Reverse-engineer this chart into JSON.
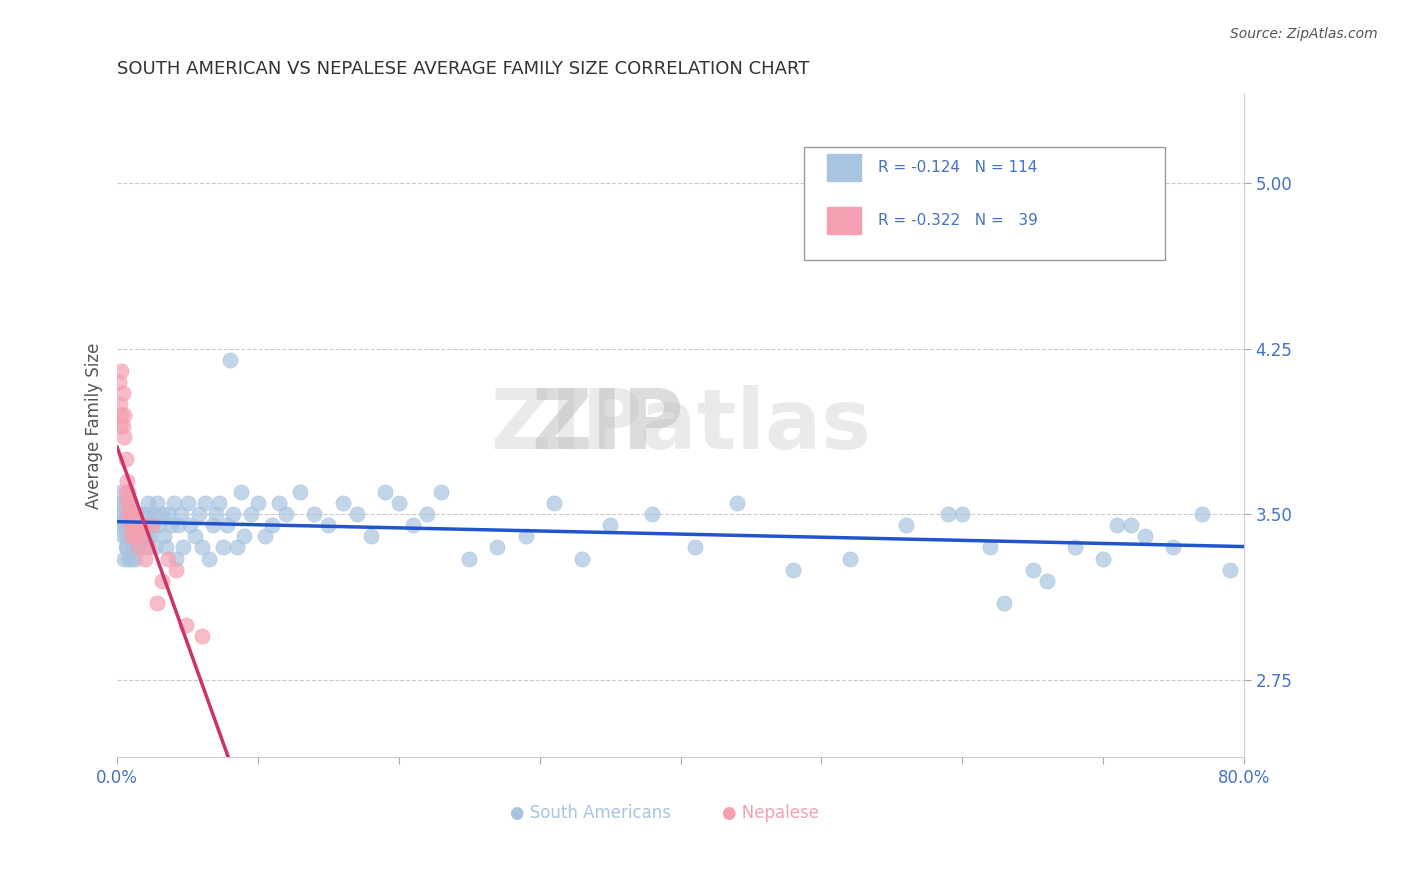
{
  "title": "SOUTH AMERICAN VS NEPALESE AVERAGE FAMILY SIZE CORRELATION CHART",
  "source": "Source: ZipAtlas.com",
  "xlabel": "",
  "ylabel": "Average Family Size",
  "title_color": "#333333",
  "title_fontsize": 13,
  "axis_color": "#4472c4",
  "ylabel_color": "#555555",
  "xlim": [
    0.0,
    0.8
  ],
  "ylim": [
    2.4,
    5.4
  ],
  "yticks": [
    2.75,
    3.5,
    4.25,
    5.0
  ],
  "xticks": [
    0.0,
    0.1,
    0.2,
    0.3,
    0.4,
    0.5,
    0.6,
    0.7,
    0.8
  ],
  "xticklabels": [
    "0.0%",
    "",
    "",
    "",
    "",
    "",
    "",
    "",
    "80.0%"
  ],
  "legend_r1": "R = -0.124",
  "legend_n1": "N = 114",
  "legend_r2": "R = -0.322",
  "legend_n2": "  39",
  "south_american_color": "#a8c4e0",
  "nepalese_color": "#f4a0b0",
  "trend_blue": "#2255cc",
  "trend_pink": "#cc3366",
  "watermark": "ZIPatlas",
  "south_american_x": [
    0.001,
    0.002,
    0.003,
    0.003,
    0.004,
    0.004,
    0.005,
    0.005,
    0.005,
    0.006,
    0.006,
    0.006,
    0.007,
    0.007,
    0.007,
    0.008,
    0.008,
    0.009,
    0.009,
    0.01,
    0.01,
    0.01,
    0.011,
    0.011,
    0.012,
    0.012,
    0.013,
    0.014,
    0.015,
    0.015,
    0.016,
    0.017,
    0.018,
    0.019,
    0.02,
    0.021,
    0.022,
    0.022,
    0.023,
    0.025,
    0.026,
    0.027,
    0.028,
    0.03,
    0.032,
    0.033,
    0.035,
    0.037,
    0.038,
    0.04,
    0.042,
    0.043,
    0.045,
    0.047,
    0.05,
    0.052,
    0.055,
    0.058,
    0.06,
    0.062,
    0.065,
    0.068,
    0.07,
    0.072,
    0.075,
    0.078,
    0.08,
    0.082,
    0.085,
    0.088,
    0.09,
    0.095,
    0.1,
    0.105,
    0.11,
    0.115,
    0.12,
    0.13,
    0.14,
    0.15,
    0.16,
    0.17,
    0.18,
    0.19,
    0.2,
    0.21,
    0.22,
    0.23,
    0.25,
    0.27,
    0.29,
    0.31,
    0.33,
    0.35,
    0.38,
    0.41,
    0.44,
    0.48,
    0.52,
    0.56,
    0.6,
    0.63,
    0.65,
    0.68,
    0.7,
    0.72,
    0.75,
    0.77,
    0.79,
    0.59,
    0.62,
    0.66,
    0.71,
    0.73
  ],
  "south_american_y": [
    3.5,
    3.45,
    3.6,
    3.55,
    3.4,
    3.5,
    3.3,
    3.45,
    3.55,
    3.35,
    3.5,
    3.4,
    3.35,
    3.45,
    3.5,
    3.3,
    3.45,
    3.4,
    3.55,
    3.3,
    3.45,
    3.5,
    3.35,
    3.45,
    3.4,
    3.5,
    3.3,
    3.45,
    3.35,
    3.5,
    3.45,
    3.4,
    3.35,
    3.5,
    3.45,
    3.4,
    3.5,
    3.55,
    3.4,
    3.45,
    3.5,
    3.35,
    3.55,
    3.45,
    3.5,
    3.4,
    3.35,
    3.5,
    3.45,
    3.55,
    3.3,
    3.45,
    3.5,
    3.35,
    3.55,
    3.45,
    3.4,
    3.5,
    3.35,
    3.55,
    3.3,
    3.45,
    3.5,
    3.55,
    3.35,
    3.45,
    4.2,
    3.5,
    3.35,
    3.6,
    3.4,
    3.5,
    3.55,
    3.4,
    3.45,
    3.55,
    3.5,
    3.6,
    3.5,
    3.45,
    3.55,
    3.5,
    3.4,
    3.6,
    3.55,
    3.45,
    3.5,
    3.6,
    3.3,
    3.35,
    3.4,
    3.55,
    3.3,
    3.45,
    3.5,
    3.35,
    3.55,
    3.25,
    3.3,
    3.45,
    3.5,
    3.1,
    3.25,
    3.35,
    3.3,
    3.45,
    3.35,
    3.5,
    3.25,
    3.5,
    3.35,
    3.2,
    3.45,
    3.4
  ],
  "nepalese_x": [
    0.001,
    0.002,
    0.002,
    0.003,
    0.003,
    0.004,
    0.004,
    0.005,
    0.005,
    0.006,
    0.006,
    0.007,
    0.007,
    0.008,
    0.008,
    0.009,
    0.009,
    0.01,
    0.01,
    0.011,
    0.011,
    0.012,
    0.012,
    0.013,
    0.013,
    0.014,
    0.015,
    0.016,
    0.017,
    0.018,
    0.02,
    0.022,
    0.025,
    0.028,
    0.032,
    0.036,
    0.042,
    0.049,
    0.06
  ],
  "nepalese_y": [
    4.1,
    4.0,
    3.9,
    4.15,
    3.95,
    3.9,
    4.05,
    3.85,
    3.95,
    3.6,
    3.75,
    3.55,
    3.65,
    3.5,
    3.6,
    3.45,
    3.55,
    3.4,
    3.5,
    3.45,
    3.5,
    3.4,
    3.45,
    3.45,
    3.5,
    3.4,
    3.35,
    3.45,
    3.4,
    3.45,
    3.3,
    3.35,
    3.45,
    3.1,
    3.2,
    3.3,
    3.25,
    3.0,
    2.95
  ]
}
